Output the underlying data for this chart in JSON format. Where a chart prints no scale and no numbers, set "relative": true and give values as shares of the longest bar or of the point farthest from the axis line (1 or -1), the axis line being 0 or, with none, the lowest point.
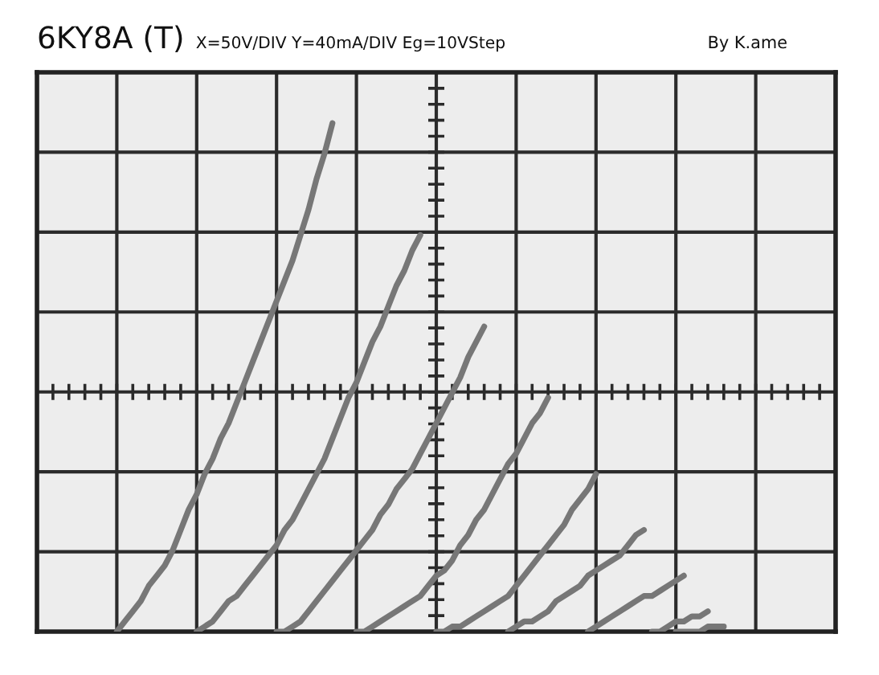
{
  "chart_data": {
    "type": "line",
    "title": "6KY8A (T)",
    "subtitle": "X=50V/DIV Y=40mA/DIV Eg=10VStep",
    "annotations": [
      "By K.ame"
    ],
    "relative": true,
    "categories": [
      null,
      null,
      null,
      null,
      null,
      null,
      null,
      null,
      null,
      null,
      null,
      null,
      null,
      null,
      null,
      null,
      null,
      null,
      null,
      null,
      null,
      null,
      null,
      null,
      null,
      null,
      null,
      null,
      null,
      null,
      null,
      null,
      null,
      null,
      null,
      null,
      null,
      null,
      null,
      null,
      null,
      null,
      null,
      null,
      null,
      null,
      null,
      null,
      null,
      null,
      null,
      null,
      null,
      null,
      null,
      null,
      null,
      null,
      null,
      null,
      null,
      null,
      null,
      null,
      null,
      null,
      null,
      null,
      null,
      null,
      null,
      null,
      null,
      null,
      null,
      null,
      null
    ],
    "series": [
      {
        "color": "#777777",
        "values": [
          0,
          0.02,
          0.04,
          0.06,
          0.09,
          0.11,
          0.13,
          0.16,
          0.2,
          0.24,
          0.27,
          0.31,
          0.34,
          0.38,
          0.41,
          0.45,
          0.49,
          0.53,
          0.57,
          0.61,
          0.65,
          0.69,
          0.73,
          0.78,
          0.83,
          0.89,
          0.94,
          1,
          null,
          null,
          null,
          null,
          null,
          null,
          null,
          null,
          null,
          null,
          null,
          null,
          null,
          null,
          null,
          null,
          null,
          null,
          null,
          null,
          null,
          null,
          null,
          null,
          null,
          null,
          null,
          null,
          null,
          null,
          null,
          null,
          null,
          null,
          null,
          null,
          null,
          null,
          null,
          null,
          null,
          null,
          null,
          null,
          null,
          null,
          null,
          null,
          null
        ]
      },
      {
        "color": "#777777",
        "values": [
          null,
          null,
          null,
          null,
          null,
          null,
          null,
          null,
          null,
          null,
          0,
          0.01,
          0.02,
          0.04,
          0.06,
          0.07,
          0.09,
          0.11,
          0.13,
          0.15,
          0.17,
          0.2,
          0.22,
          0.25,
          0.28,
          0.31,
          0.34,
          0.38,
          0.42,
          0.46,
          0.49,
          0.53,
          0.57,
          0.6,
          0.64,
          0.68,
          0.71,
          0.75,
          0.78,
          null,
          null,
          null,
          null,
          null,
          null,
          null,
          null,
          null,
          null,
          null,
          null,
          null,
          null,
          null,
          null,
          null,
          null,
          null,
          null,
          null,
          null,
          null,
          null,
          null,
          null,
          null,
          null,
          null,
          null,
          null,
          null,
          null,
          null,
          null,
          null,
          null,
          null
        ]
      },
      {
        "color": "#777777",
        "values": [
          null,
          null,
          null,
          null,
          null,
          null,
          null,
          null,
          null,
          null,
          null,
          null,
          null,
          null,
          null,
          null,
          null,
          null,
          null,
          null,
          0,
          0,
          0.01,
          0.02,
          0.04,
          0.06,
          0.08,
          0.1,
          0.12,
          0.14,
          0.16,
          0.18,
          0.2,
          0.23,
          0.25,
          0.28,
          0.3,
          0.32,
          0.35,
          0.38,
          0.41,
          0.44,
          0.47,
          0.5,
          0.54,
          0.57,
          0.6,
          null,
          null,
          null,
          null,
          null,
          null,
          null,
          null,
          null,
          null,
          null,
          null,
          null,
          null,
          null,
          null,
          null,
          null,
          null,
          null,
          null,
          null,
          null,
          null,
          null,
          null,
          null,
          null,
          null,
          null
        ]
      },
      {
        "color": "#777777",
        "values": [
          null,
          null,
          null,
          null,
          null,
          null,
          null,
          null,
          null,
          null,
          null,
          null,
          null,
          null,
          null,
          null,
          null,
          null,
          null,
          null,
          null,
          null,
          null,
          null,
          null,
          null,
          null,
          null,
          null,
          null,
          0,
          0,
          0.01,
          0.02,
          0.03,
          0.04,
          0.05,
          0.06,
          0.07,
          0.09,
          0.11,
          0.12,
          0.14,
          0.17,
          0.19,
          0.22,
          0.24,
          0.27,
          0.3,
          0.33,
          0.35,
          0.38,
          0.41,
          0.43,
          0.46,
          null,
          null,
          null,
          null,
          null,
          null,
          null,
          null,
          null,
          null,
          null,
          null,
          null,
          null,
          null,
          null,
          null,
          null,
          null,
          null,
          null,
          null
        ]
      },
      {
        "color": "#777777",
        "values": [
          null,
          null,
          null,
          null,
          null,
          null,
          null,
          null,
          null,
          null,
          null,
          null,
          null,
          null,
          null,
          null,
          null,
          null,
          null,
          null,
          null,
          null,
          null,
          null,
          null,
          null,
          null,
          null,
          null,
          null,
          null,
          null,
          null,
          null,
          null,
          null,
          null,
          null,
          null,
          null,
          0,
          0,
          0.01,
          0.01,
          0.02,
          0.03,
          0.04,
          0.05,
          0.06,
          0.07,
          0.09,
          0.11,
          0.13,
          0.15,
          0.17,
          0.19,
          0.21,
          0.24,
          0.26,
          0.28,
          0.31,
          null,
          null,
          null,
          null,
          null,
          null,
          null,
          null,
          null,
          null,
          null,
          null,
          null,
          null,
          null,
          null
        ]
      },
      {
        "color": "#777777",
        "values": [
          null,
          null,
          null,
          null,
          null,
          null,
          null,
          null,
          null,
          null,
          null,
          null,
          null,
          null,
          null,
          null,
          null,
          null,
          null,
          null,
          null,
          null,
          null,
          null,
          null,
          null,
          null,
          null,
          null,
          null,
          null,
          null,
          null,
          null,
          null,
          null,
          null,
          null,
          null,
          null,
          null,
          null,
          null,
          null,
          null,
          null,
          null,
          null,
          null,
          0,
          0.01,
          0.02,
          0.02,
          0.03,
          0.04,
          0.06,
          0.07,
          0.08,
          0.09,
          0.11,
          0.12,
          0.13,
          0.14,
          0.15,
          0.17,
          0.19,
          0.2,
          null,
          null,
          null,
          null,
          null,
          null,
          null,
          null,
          null,
          null
        ]
      },
      {
        "color": "#777777",
        "values": [
          null,
          null,
          null,
          null,
          null,
          null,
          null,
          null,
          null,
          null,
          null,
          null,
          null,
          null,
          null,
          null,
          null,
          null,
          null,
          null,
          null,
          null,
          null,
          null,
          null,
          null,
          null,
          null,
          null,
          null,
          null,
          null,
          null,
          null,
          null,
          null,
          null,
          null,
          null,
          null,
          null,
          null,
          null,
          null,
          null,
          null,
          null,
          null,
          null,
          null,
          null,
          null,
          null,
          null,
          null,
          null,
          null,
          null,
          null,
          0,
          0.01,
          0.02,
          0.03,
          0.04,
          0.05,
          0.06,
          0.07,
          0.07,
          0.08,
          0.09,
          0.1,
          0.11,
          null,
          null,
          null,
          null,
          null
        ]
      },
      {
        "color": "#777777",
        "values": [
          null,
          null,
          null,
          null,
          null,
          null,
          null,
          null,
          null,
          null,
          null,
          null,
          null,
          null,
          null,
          null,
          null,
          null,
          null,
          null,
          null,
          null,
          null,
          null,
          null,
          null,
          null,
          null,
          null,
          null,
          null,
          null,
          null,
          null,
          null,
          null,
          null,
          null,
          null,
          null,
          null,
          null,
          null,
          null,
          null,
          null,
          null,
          null,
          null,
          null,
          null,
          null,
          null,
          null,
          null,
          null,
          null,
          null,
          null,
          null,
          null,
          null,
          null,
          null,
          null,
          null,
          null,
          0,
          0,
          0.01,
          0.02,
          0.02,
          0.03,
          0.03,
          0.04,
          null,
          null
        ]
      },
      {
        "color": "#777777",
        "values": [
          null,
          null,
          null,
          null,
          null,
          null,
          null,
          null,
          null,
          null,
          null,
          null,
          null,
          null,
          null,
          null,
          null,
          null,
          null,
          null,
          null,
          null,
          null,
          null,
          null,
          null,
          null,
          null,
          null,
          null,
          null,
          null,
          null,
          null,
          null,
          null,
          null,
          null,
          null,
          null,
          null,
          null,
          null,
          null,
          null,
          null,
          null,
          null,
          null,
          null,
          null,
          null,
          null,
          null,
          null,
          null,
          null,
          null,
          null,
          null,
          null,
          null,
          null,
          null,
          null,
          null,
          null,
          null,
          null,
          null,
          0,
          0,
          0,
          0,
          0.01,
          0.01,
          0.01
        ]
      }
    ],
    "grid": true,
    "marker": "none",
    "line_style": "solid"
  }
}
